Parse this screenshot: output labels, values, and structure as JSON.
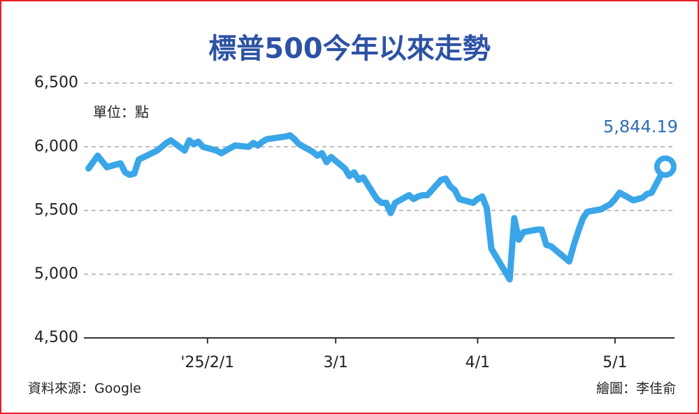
{
  "chart_data": {
    "type": "line",
    "title": "標普500今年以來走勢",
    "unit": "單位：點",
    "source": "資料來源：Google",
    "credit": "繪圖：李佳俞",
    "color": "#3aa6e8",
    "grid": true,
    "xlim": [
      "2025-01-05",
      "2025-05-14"
    ],
    "xticks": [
      {
        "value": "2025-02-01",
        "label": "'25/2/1"
      },
      {
        "value": "2025-03-01",
        "label": "3/1"
      },
      {
        "value": "2025-04-01",
        "label": "4/1"
      },
      {
        "value": "2025-05-01",
        "label": "5/1"
      }
    ],
    "ylim": [
      4500,
      6500
    ],
    "yticks": [
      {
        "value": 4500,
        "label": "4,500"
      },
      {
        "value": 5000,
        "label": "5,000"
      },
      {
        "value": 5500,
        "label": "5,500"
      },
      {
        "value": 6000,
        "label": "6,000"
      },
      {
        "value": 6500,
        "label": "6,500"
      }
    ],
    "x": [
      "2025-01-06",
      "2025-01-07",
      "2025-01-08",
      "2025-01-10",
      "2025-01-13",
      "2025-01-14",
      "2025-01-15",
      "2025-01-16",
      "2025-01-17",
      "2025-01-21",
      "2025-01-22",
      "2025-01-23",
      "2025-01-24",
      "2025-01-27",
      "2025-01-28",
      "2025-01-29",
      "2025-01-30",
      "2025-01-31",
      "2025-02-03",
      "2025-02-04",
      "2025-02-05",
      "2025-02-06",
      "2025-02-07",
      "2025-02-10",
      "2025-02-11",
      "2025-02-12",
      "2025-02-13",
      "2025-02-14",
      "2025-02-18",
      "2025-02-19",
      "2025-02-20",
      "2025-02-21",
      "2025-02-24",
      "2025-02-25",
      "2025-02-26",
      "2025-02-27",
      "2025-02-28",
      "2025-03-03",
      "2025-03-04",
      "2025-03-05",
      "2025-03-06",
      "2025-03-07",
      "2025-03-10",
      "2025-03-11",
      "2025-03-12",
      "2025-03-13",
      "2025-03-14",
      "2025-03-17",
      "2025-03-18",
      "2025-03-19",
      "2025-03-20",
      "2025-03-21",
      "2025-03-24",
      "2025-03-25",
      "2025-03-26",
      "2025-03-27",
      "2025-03-28",
      "2025-03-31",
      "2025-04-01",
      "2025-04-02",
      "2025-04-03",
      "2025-04-04",
      "2025-04-07",
      "2025-04-08",
      "2025-04-09",
      "2025-04-10",
      "2025-04-11",
      "2025-04-14",
      "2025-04-15",
      "2025-04-16",
      "2025-04-17",
      "2025-04-21",
      "2025-04-22",
      "2025-04-23",
      "2025-04-24",
      "2025-04-25",
      "2025-04-28",
      "2025-04-29",
      "2025-04-30",
      "2025-05-01",
      "2025-05-02",
      "2025-05-05",
      "2025-05-06",
      "2025-05-07",
      "2025-05-08",
      "2025-05-09",
      "2025-05-12"
    ],
    "values": [
      5830,
      5880,
      5930,
      5840,
      5870,
      5800,
      5780,
      5790,
      5900,
      5970,
      6000,
      6030,
      6050,
      5970,
      6050,
      6020,
      6040,
      6000,
      5970,
      5950,
      5970,
      5990,
      6010,
      6000,
      6030,
      6010,
      6040,
      6060,
      6080,
      6090,
      6060,
      6020,
      5960,
      5930,
      5950,
      5880,
      5920,
      5830,
      5770,
      5800,
      5740,
      5760,
      5590,
      5560,
      5560,
      5480,
      5560,
      5620,
      5590,
      5610,
      5620,
      5620,
      5740,
      5750,
      5690,
      5660,
      5590,
      5560,
      5590,
      5610,
      5520,
      5200,
      5020,
      4960,
      5440,
      5270,
      5330,
      5350,
      5350,
      5230,
      5220,
      5100,
      5230,
      5340,
      5440,
      5490,
      5510,
      5530,
      5550,
      5590,
      5640,
      5580,
      5590,
      5600,
      5630,
      5640,
      5844.19
    ],
    "value_labels": [
      null,
      null,
      null,
      null,
      null,
      null,
      null,
      null,
      null,
      null,
      null,
      null,
      null,
      null,
      null,
      null,
      null,
      null,
      null,
      null,
      null,
      null,
      null,
      null,
      null,
      null,
      null,
      null,
      null,
      null,
      null,
      null,
      null,
      null,
      null,
      null,
      null,
      null,
      null,
      null,
      null,
      null,
      null,
      null,
      null,
      null,
      null,
      null,
      null,
      null,
      null,
      null,
      null,
      null,
      null,
      null,
      null,
      null,
      null,
      null,
      null,
      null,
      null,
      null,
      null,
      null,
      null,
      null,
      null,
      null,
      null,
      null,
      null,
      null,
      null,
      null,
      null,
      null,
      null,
      null,
      null,
      null,
      null,
      null,
      null,
      null,
      "5,844.19"
    ]
  }
}
